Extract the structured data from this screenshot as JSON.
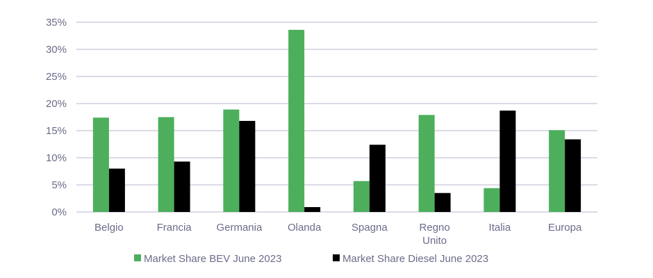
{
  "chart_data": {
    "type": "bar",
    "title": "",
    "xlabel": "",
    "ylabel": "",
    "categories": [
      [
        "Belgio"
      ],
      [
        "Francia"
      ],
      [
        "Germania"
      ],
      [
        "Olanda"
      ],
      [
        "Spagna"
      ],
      [
        "Regno",
        "Unito"
      ],
      [
        "Italia"
      ],
      [
        "Europa"
      ]
    ],
    "series": [
      {
        "name": "Market Share BEV June 2023",
        "color": "#4daf5c",
        "values": [
          17.4,
          17.5,
          18.9,
          33.6,
          5.7,
          17.9,
          4.4,
          15.1
        ]
      },
      {
        "name": "Market Share Diesel June 2023",
        "color": "#000000",
        "values": [
          8.0,
          9.3,
          16.8,
          0.9,
          12.4,
          3.5,
          18.7,
          13.4
        ]
      }
    ],
    "ylim": [
      0,
      35
    ],
    "yticks": [
      "0%",
      "5%",
      "10%",
      "15%",
      "20%",
      "25%",
      "30%",
      "35%"
    ],
    "ytick_values": [
      0,
      5,
      10,
      15,
      20,
      25,
      30,
      35
    ],
    "grid": true,
    "legend_position": "bottom-center"
  }
}
